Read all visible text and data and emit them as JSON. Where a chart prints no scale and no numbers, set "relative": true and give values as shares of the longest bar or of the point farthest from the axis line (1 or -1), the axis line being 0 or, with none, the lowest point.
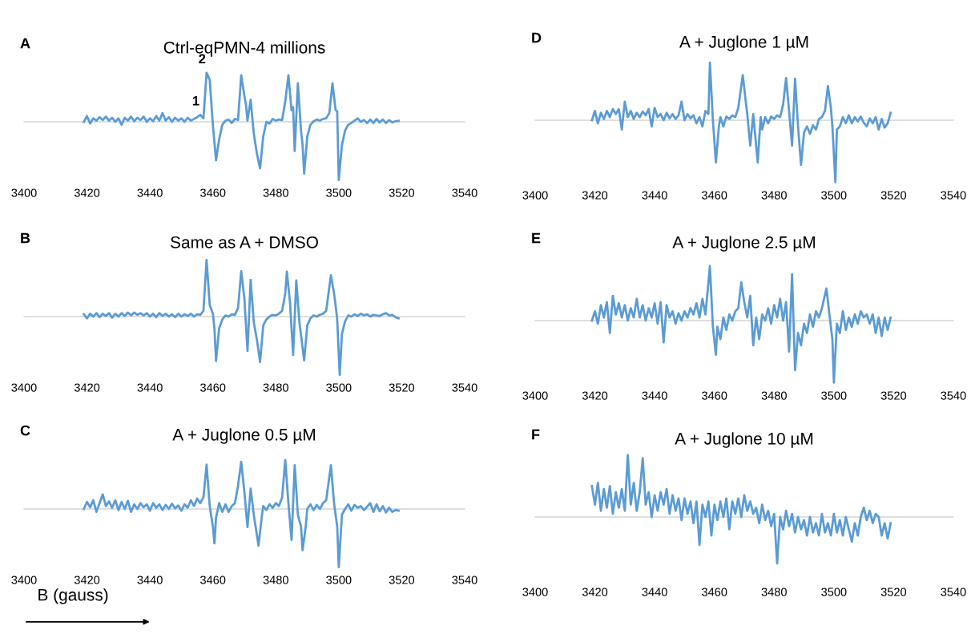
{
  "chart_data": [
    {
      "type": "line",
      "title": "Ctrl-eqPMN-4 millions",
      "relative": true,
      "xlim": [
        3400,
        3540
      ],
      "xticks": [
        3400,
        3420,
        3440,
        3460,
        3480,
        3500,
        3520,
        3540
      ],
      "annotations": [
        "A",
        {
          "text": "2",
          "x": 3458,
          "y": 0.84
        },
        {
          "text": "1",
          "x": 3456,
          "y": 0.12
        }
      ],
      "x": [
        3419,
        3420,
        3421,
        3422,
        3423,
        3424,
        3425,
        3426,
        3427,
        3428,
        3429,
        3430,
        3431,
        3432,
        3433,
        3434,
        3435,
        3436,
        3437,
        3438,
        3439,
        3440,
        3441,
        3442,
        3443,
        3444,
        3445,
        3446,
        3447,
        3448,
        3449,
        3450,
        3451,
        3452,
        3453,
        3454,
        3455,
        3456,
        3457,
        3458,
        3459,
        3460,
        3461,
        3462,
        3463,
        3464,
        3465,
        3466,
        3467,
        3468,
        3469,
        3470,
        3470.5,
        3471,
        3472,
        3473,
        3474,
        3475,
        3476,
        3477,
        3478,
        3479,
        3480,
        3481,
        3482,
        3483,
        3484,
        3485,
        3485.5,
        3486,
        3487,
        3488,
        3488.5,
        3489,
        3490,
        3491,
        3492,
        3493,
        3494,
        3495,
        3496,
        3497,
        3498,
        3499,
        3499.5,
        3500,
        3501,
        3502,
        3503,
        3504,
        3505,
        3506,
        3507,
        3508,
        3509,
        3510,
        3511,
        3512,
        3513,
        3514,
        3515,
        3516,
        3517,
        3518,
        3519
      ],
      "series": [
        {
          "color": "#5b9bd5",
          "values": [
            0.0,
            0.1,
            -0.03,
            0.06,
            0.02,
            0.08,
            0.03,
            0.09,
            0.02,
            0.07,
            0.0,
            0.06,
            -0.05,
            0.07,
            0.02,
            0.09,
            0.01,
            0.07,
            0.03,
            0.09,
            0.0,
            0.06,
            0.01,
            0.1,
            0.02,
            0.15,
            0.02,
            0.08,
            0.0,
            0.07,
            0.02,
            0.06,
            0.0,
            0.07,
            0.02,
            0.05,
            0.08,
            0.12,
            0.06,
            0.84,
            0.72,
            -0.05,
            -0.66,
            -0.3,
            -0.05,
            0.02,
            0.04,
            -0.02,
            0.05,
            0.03,
            0.8,
            0.45,
            0.3,
            0.02,
            0.38,
            -0.2,
            -0.55,
            -0.8,
            -0.25,
            0.0,
            -0.03,
            0.05,
            0.02,
            0.04,
            0.03,
            0.35,
            0.8,
            0.2,
            0.25,
            -0.5,
            0.66,
            -0.15,
            -0.4,
            -0.89,
            -0.25,
            -0.05,
            0.01,
            0.04,
            0.02,
            0.05,
            0.06,
            0.15,
            0.66,
            0.2,
            0.18,
            -1.0,
            -0.4,
            -0.15,
            -0.05,
            -0.02,
            0.02,
            0.06,
            0.0,
            0.03,
            -0.02,
            0.04,
            -0.02,
            0.05,
            -0.01,
            0.04,
            -0.02,
            0.03,
            -0.01,
            0.01,
            0.02
          ]
        }
      ]
    },
    {
      "type": "line",
      "title": "Same as A + DMSO",
      "relative": true,
      "xlim": [
        3400,
        3540
      ],
      "xticks": [
        3400,
        3420,
        3440,
        3460,
        3480,
        3500,
        3520,
        3540
      ],
      "annotations": [
        "B"
      ],
      "x": [
        3419,
        3420,
        3421,
        3422,
        3423,
        3424,
        3425,
        3426,
        3427,
        3428,
        3429,
        3430,
        3431,
        3432,
        3433,
        3434,
        3435,
        3436,
        3437,
        3438,
        3439,
        3440,
        3441,
        3442,
        3443,
        3444,
        3445,
        3446,
        3447,
        3448,
        3449,
        3450,
        3451,
        3452,
        3453,
        3454,
        3455,
        3456,
        3457,
        3458,
        3459,
        3460,
        3460.5,
        3461,
        3462,
        3463,
        3464,
        3465,
        3466,
        3467,
        3468,
        3469,
        3470,
        3471,
        3472,
        3473,
        3474,
        3475,
        3476,
        3477,
        3478,
        3479,
        3480,
        3481,
        3482,
        3483,
        3483.5,
        3484.5,
        3485.5,
        3486.5,
        3487.5,
        3489,
        3490,
        3491,
        3492,
        3493,
        3494,
        3495,
        3496,
        3497.5,
        3498.5,
        3499,
        3499.5,
        3500.3,
        3501,
        3502,
        3503,
        3504,
        3505,
        3506,
        3507,
        3508,
        3509,
        3510,
        3511,
        3512,
        3513,
        3514,
        3515,
        3516,
        3517,
        3518,
        3519
      ],
      "series": [
        {
          "color": "#5b9bd5",
          "values": [
            0.04,
            -0.03,
            0.05,
            0.0,
            0.06,
            -0.01,
            0.05,
            0.01,
            0.06,
            -0.02,
            0.05,
            0.0,
            0.06,
            0.01,
            0.07,
            0.02,
            0.07,
            0.03,
            0.06,
            0.02,
            0.06,
            0.0,
            0.05,
            -0.01,
            0.06,
            0.01,
            0.05,
            0.0,
            0.04,
            -0.01,
            0.05,
            0.0,
            0.04,
            0.01,
            0.05,
            0.0,
            0.04,
            0.03,
            0.1,
            0.97,
            0.2,
            0.05,
            -0.2,
            -0.76,
            -0.2,
            -0.05,
            0.02,
            0.0,
            0.04,
            0.03,
            0.15,
            0.78,
            0.32,
            -0.59,
            0.63,
            -0.1,
            -0.4,
            -0.78,
            -0.15,
            -0.05,
            0.0,
            0.03,
            0.02,
            0.05,
            0.1,
            0.4,
            0.77,
            0.25,
            -0.66,
            0.62,
            -0.1,
            -0.75,
            -0.15,
            -0.03,
            0.02,
            0.0,
            0.03,
            0.05,
            0.1,
            0.71,
            0.4,
            0.19,
            -0.05,
            -1.0,
            -0.3,
            -0.08,
            0.02,
            0.0,
            0.04,
            0.01,
            0.05,
            0.02,
            0.04,
            0.0,
            0.03,
            0.02,
            0.01,
            0.04,
            0.06,
            0.02,
            0.03,
            -0.01,
            -0.03
          ]
        }
      ]
    },
    {
      "type": "line",
      "title": "A + Juglone 0.5 µM",
      "xlabel": "B (gauss)",
      "relative": true,
      "xlim": [
        3400,
        3540
      ],
      "xticks": [
        3400,
        3420,
        3440,
        3460,
        3480,
        3500,
        3520,
        3540
      ],
      "annotations": [
        "C"
      ],
      "x": [
        3419,
        3420,
        3421,
        3422,
        3423,
        3424,
        3425,
        3426,
        3427,
        3428,
        3429,
        3430,
        3431,
        3432,
        3433,
        3434,
        3435,
        3436,
        3437,
        3438,
        3439,
        3440,
        3441,
        3442,
        3443,
        3444,
        3445,
        3446,
        3447,
        3448,
        3449,
        3450,
        3451,
        3452,
        3453,
        3454,
        3455,
        3456,
        3457,
        3458,
        3459,
        3460,
        3460.5,
        3461,
        3462,
        3463,
        3464,
        3465,
        3466,
        3467,
        3468,
        3469,
        3470,
        3471,
        3472,
        3473,
        3474.5,
        3475.5,
        3476,
        3477,
        3478,
        3479,
        3480,
        3481,
        3482,
        3483,
        3484,
        3485,
        3486,
        3487,
        3488,
        3488.5,
        3489.5,
        3490,
        3491,
        3492,
        3493,
        3494,
        3495,
        3496,
        3497.5,
        3498.5,
        3499.5,
        3500,
        3501,
        3502,
        3503,
        3504,
        3505,
        3506,
        3507,
        3508,
        3509,
        3510,
        3511,
        3512,
        3513,
        3514,
        3515,
        3516,
        3517,
        3518,
        3519
      ],
      "series": [
        {
          "color": "#5b9bd5",
          "values": [
            0.0,
            0.12,
            0.03,
            0.15,
            -0.05,
            0.1,
            0.25,
            0.05,
            0.13,
            0.02,
            0.15,
            -0.02,
            0.12,
            0.0,
            0.14,
            -0.05,
            0.08,
            0.0,
            0.1,
            0.03,
            0.08,
            -0.03,
            0.1,
            0.02,
            0.08,
            -0.02,
            0.07,
            0.0,
            0.09,
            0.01,
            0.06,
            -0.03,
            0.08,
            0.02,
            0.15,
            0.05,
            0.18,
            0.1,
            0.2,
            0.76,
            0.05,
            -0.3,
            -0.59,
            -0.15,
            0.1,
            -0.05,
            0.08,
            -0.05,
            0.05,
            0.1,
            0.4,
            0.81,
            0.3,
            -0.31,
            0.35,
            -0.1,
            -0.63,
            -0.15,
            0.05,
            -0.02,
            0.08,
            0.02,
            0.1,
            0.05,
            0.2,
            0.84,
            0.1,
            -0.53,
            0.75,
            -0.1,
            -0.3,
            -0.71,
            -0.3,
            0.0,
            0.08,
            -0.02,
            0.07,
            0.0,
            0.1,
            0.15,
            0.75,
            0.1,
            -0.3,
            -1.0,
            -0.1,
            0.0,
            0.08,
            -0.03,
            0.07,
            0.02,
            0.05,
            -0.02,
            0.04,
            0.1,
            -0.05,
            0.08,
            -0.04,
            0.05,
            -0.06,
            0.02,
            -0.05,
            -0.02,
            -0.03
          ]
        }
      ]
    },
    {
      "type": "line",
      "title": "A + Juglone 1 µM",
      "relative": true,
      "xlim": [
        3400,
        3540
      ],
      "xticks": [
        3400,
        3420,
        3440,
        3460,
        3480,
        3500,
        3520,
        3540
      ],
      "annotations": [
        "D"
      ],
      "x": [
        3419,
        3420,
        3421,
        3422,
        3423,
        3424,
        3425,
        3426,
        3427,
        3428,
        3429,
        3430,
        3431,
        3432,
        3433,
        3434,
        3435,
        3436,
        3437,
        3438,
        3439,
        3440,
        3441,
        3442,
        3443,
        3444,
        3445,
        3446,
        3447,
        3448,
        3449,
        3450,
        3451,
        3452,
        3453,
        3454,
        3455,
        3456,
        3457,
        3458,
        3458.5,
        3459.5,
        3460.5,
        3461.5,
        3462,
        3463,
        3464,
        3465,
        3466,
        3467,
        3468,
        3469.5,
        3470.5,
        3471,
        3472,
        3473,
        3474.5,
        3475.5,
        3476,
        3477,
        3478,
        3479,
        3480,
        3481,
        3482,
        3483,
        3484,
        3485,
        3486,
        3487,
        3488,
        3489,
        3490,
        3491,
        3492,
        3493,
        3494,
        3495,
        3496,
        3497,
        3498,
        3499,
        3499.5,
        3500.5,
        3501,
        3502,
        3503,
        3504,
        3505,
        3506,
        3507,
        3508,
        3509,
        3510,
        3511,
        3512,
        3513,
        3514,
        3515,
        3516,
        3517,
        3518,
        3519
      ],
      "series": [
        {
          "color": "#5b9bd5",
          "values": [
            0.0,
            0.15,
            -0.05,
            0.12,
            0.02,
            0.15,
            0.05,
            0.18,
            0.1,
            0.18,
            -0.15,
            0.3,
            0.05,
            0.15,
            0.02,
            0.12,
            0.05,
            0.14,
            0.08,
            0.18,
            -0.1,
            0.2,
            0.05,
            0.1,
            0.0,
            0.12,
            0.03,
            0.1,
            0.02,
            0.08,
            0.3,
            0.0,
            0.1,
            0.03,
            0.08,
            -0.05,
            0.05,
            -0.1,
            0.15,
            0.1,
            0.93,
            0.0,
            -0.68,
            -0.1,
            0.05,
            -0.1,
            0.06,
            0.02,
            0.08,
            0.05,
            0.2,
            0.73,
            0.3,
            0.1,
            -0.41,
            0.1,
            -0.68,
            0.05,
            -0.15,
            0.05,
            -0.05,
            0.06,
            0.02,
            0.08,
            0.05,
            0.25,
            0.68,
            0.15,
            -0.41,
            0.67,
            -0.1,
            -0.72,
            -0.2,
            -0.1,
            -0.22,
            -0.08,
            -0.15,
            0.02,
            0.05,
            0.15,
            0.55,
            0.2,
            -0.1,
            -1.0,
            -0.15,
            -0.1,
            0.05,
            -0.05,
            0.08,
            -0.05,
            0.05,
            -0.02,
            0.06,
            -0.04,
            -0.1,
            0.03,
            -0.05,
            0.05,
            -0.15,
            0.02,
            -0.12,
            -0.05,
            0.12
          ]
        }
      ]
    },
    {
      "type": "line",
      "title": "A + Juglone 2.5 µM",
      "relative": true,
      "xlim": [
        3400,
        3540
      ],
      "xticks": [
        3400,
        3420,
        3440,
        3460,
        3480,
        3500,
        3520,
        3540
      ],
      "annotations": [
        "E"
      ],
      "x": [
        3419,
        3420,
        3421,
        3422,
        3423,
        3424,
        3425,
        3426,
        3427,
        3428,
        3429,
        3430,
        3431,
        3432,
        3433,
        3434,
        3435,
        3436,
        3437,
        3438,
        3439,
        3440,
        3441,
        3442,
        3443,
        3444,
        3445,
        3446,
        3447,
        3448,
        3449,
        3450,
        3451,
        3452,
        3453,
        3454,
        3455,
        3456,
        3457,
        3458.5,
        3459.5,
        3460.5,
        3461,
        3462,
        3463,
        3464,
        3465,
        3466,
        3467,
        3468,
        3469,
        3470,
        3471,
        3472,
        3473,
        3474,
        3475,
        3476,
        3477,
        3478,
        3479,
        3480,
        3481,
        3482,
        3483,
        3484,
        3485,
        3486,
        3487,
        3488,
        3489,
        3490,
        3491,
        3492,
        3493,
        3494,
        3495,
        3496,
        3497.5,
        3498.5,
        3499.5,
        3500,
        3501,
        3502,
        3503,
        3504,
        3505,
        3506,
        3507,
        3508,
        3509,
        3510,
        3511,
        3512,
        3513,
        3514,
        3515,
        3516,
        3517,
        3518,
        3519
      ],
      "series": [
        {
          "color": "#5b9bd5",
          "values": [
            0.0,
            0.15,
            -0.05,
            0.25,
            0.05,
            0.3,
            -0.2,
            0.4,
            0.1,
            0.28,
            0.05,
            0.25,
            0.0,
            0.2,
            0.05,
            0.35,
            0.05,
            0.25,
            0.0,
            0.2,
            0.05,
            0.28,
            -0.05,
            0.3,
            -0.35,
            0.25,
            0.05,
            0.15,
            -0.05,
            0.12,
            0.0,
            0.15,
            0.05,
            0.2,
            0.1,
            0.28,
            0.05,
            0.35,
            0.1,
            0.88,
            -0.1,
            -0.55,
            -0.1,
            -0.3,
            0.05,
            -0.15,
            0.1,
            0.0,
            0.15,
            0.2,
            0.62,
            0.3,
            0.05,
            0.4,
            -0.4,
            0.05,
            -0.3,
            0.1,
            0.0,
            0.2,
            -0.05,
            0.25,
            0.05,
            0.35,
            0.0,
            0.3,
            -0.5,
            0.75,
            -0.8,
            -0.2,
            -0.4,
            -0.05,
            -0.2,
            0.1,
            -0.1,
            0.15,
            0.05,
            0.2,
            0.52,
            0.1,
            -0.3,
            -1.0,
            -0.05,
            -0.2,
            0.15,
            -0.15,
            0.05,
            -0.1,
            0.1,
            -0.05,
            0.15,
            0.05,
            0.1,
            -0.05,
            0.1,
            -0.2,
            0.05,
            -0.25,
            0.05,
            -0.15,
            0.05
          ]
        }
      ]
    },
    {
      "type": "line",
      "title": "A + Juglone 10 µM",
      "relative": true,
      "xlim": [
        3400,
        3540
      ],
      "xticks": [
        3400,
        3420,
        3440,
        3460,
        3480,
        3500,
        3520,
        3540
      ],
      "annotations": [
        "F"
      ],
      "x": [
        3419,
        3420,
        3421,
        3422,
        3423,
        3424,
        3425,
        3426,
        3427,
        3428,
        3429,
        3430,
        3431,
        3432,
        3433,
        3434,
        3435,
        3436,
        3437,
        3438,
        3439,
        3440,
        3441,
        3442,
        3443,
        3444,
        3445,
        3446,
        3447,
        3448,
        3449,
        3450,
        3451,
        3452,
        3453,
        3454,
        3455,
        3456,
        3457,
        3458,
        3459,
        3460,
        3461,
        3462,
        3463,
        3464,
        3465,
        3466,
        3467,
        3468,
        3469,
        3470,
        3471,
        3472,
        3473,
        3474,
        3475,
        3476,
        3477,
        3478,
        3479,
        3480,
        3481,
        3482,
        3483,
        3484,
        3485,
        3486,
        3487,
        3488,
        3489,
        3490,
        3491,
        3492,
        3493,
        3494,
        3495,
        3496,
        3497,
        3498,
        3499,
        3500,
        3501,
        3502,
        3503,
        3504,
        3505,
        3506,
        3507,
        3508,
        3509,
        3510,
        3511,
        3512,
        3513,
        3514,
        3515,
        3516,
        3517,
        3518,
        3519
      ],
      "series": [
        {
          "color": "#5b9bd5",
          "values": [
            0.5,
            0.2,
            0.55,
            0.1,
            0.45,
            0.15,
            0.5,
            0.05,
            0.4,
            0.15,
            0.45,
            0.1,
            1.0,
            0.2,
            0.55,
            0.1,
            0.4,
            0.95,
            0.2,
            0.4,
            0.0,
            0.35,
            0.1,
            0.4,
            0.2,
            0.45,
            0.05,
            0.35,
            0.1,
            0.3,
            -0.05,
            0.3,
            0.05,
            0.25,
            -0.1,
            0.25,
            -0.45,
            0.2,
            0.0,
            0.25,
            -0.3,
            0.2,
            -0.05,
            0.25,
            0.0,
            0.3,
            -0.2,
            0.25,
            0.05,
            0.3,
            0.0,
            0.35,
            0.1,
            0.25,
            0.05,
            0.15,
            -0.1,
            0.2,
            -0.05,
            0.1,
            -0.15,
            0.05,
            -0.75,
            0.0,
            -0.2,
            0.1,
            -0.15,
            0.05,
            -0.25,
            0.0,
            -0.2,
            -0.05,
            -0.3,
            0.0,
            -0.25,
            -0.1,
            -0.3,
            0.05,
            -0.25,
            -0.1,
            -0.3,
            0.05,
            -0.25,
            -0.05,
            -0.3,
            0.0,
            -0.2,
            -0.4,
            -0.1,
            -0.3,
            0.0,
            0.15,
            -0.05,
            0.1,
            -0.1,
            0.05,
            0.0,
            -0.3,
            -0.1,
            -0.35,
            -0.1
          ]
        }
      ]
    }
  ]
}
